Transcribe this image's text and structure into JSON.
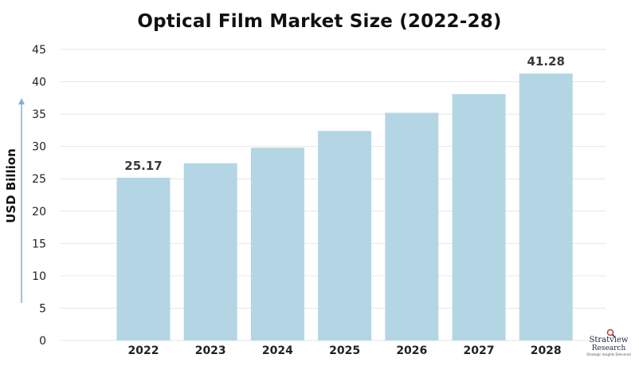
{
  "chart_data": {
    "type": "bar",
    "title": "Optical Film Market Size (2022-28)",
    "ylabel": "USD Billion",
    "xlabel": "",
    "categories": [
      "2022",
      "2023",
      "2024",
      "2025",
      "2026",
      "2027",
      "2028"
    ],
    "values": [
      25.17,
      27.4,
      29.8,
      32.4,
      35.2,
      38.1,
      41.28
    ],
    "data_labels": [
      "25.17",
      "",
      "",
      "",
      "",
      "",
      "41.28"
    ],
    "yticks": [
      0,
      5,
      10,
      15,
      20,
      25,
      30,
      35,
      40,
      45
    ],
    "ylim": [
      0,
      45
    ],
    "grid": true,
    "bar_color": "#b4d6e4",
    "grid_color": "#e6e6e6",
    "axis_arrow_color": "#7fb4cf"
  },
  "watermark": {
    "name": "Stratview",
    "sub": "Research",
    "tagline": "Strategic Insights Delivered"
  }
}
